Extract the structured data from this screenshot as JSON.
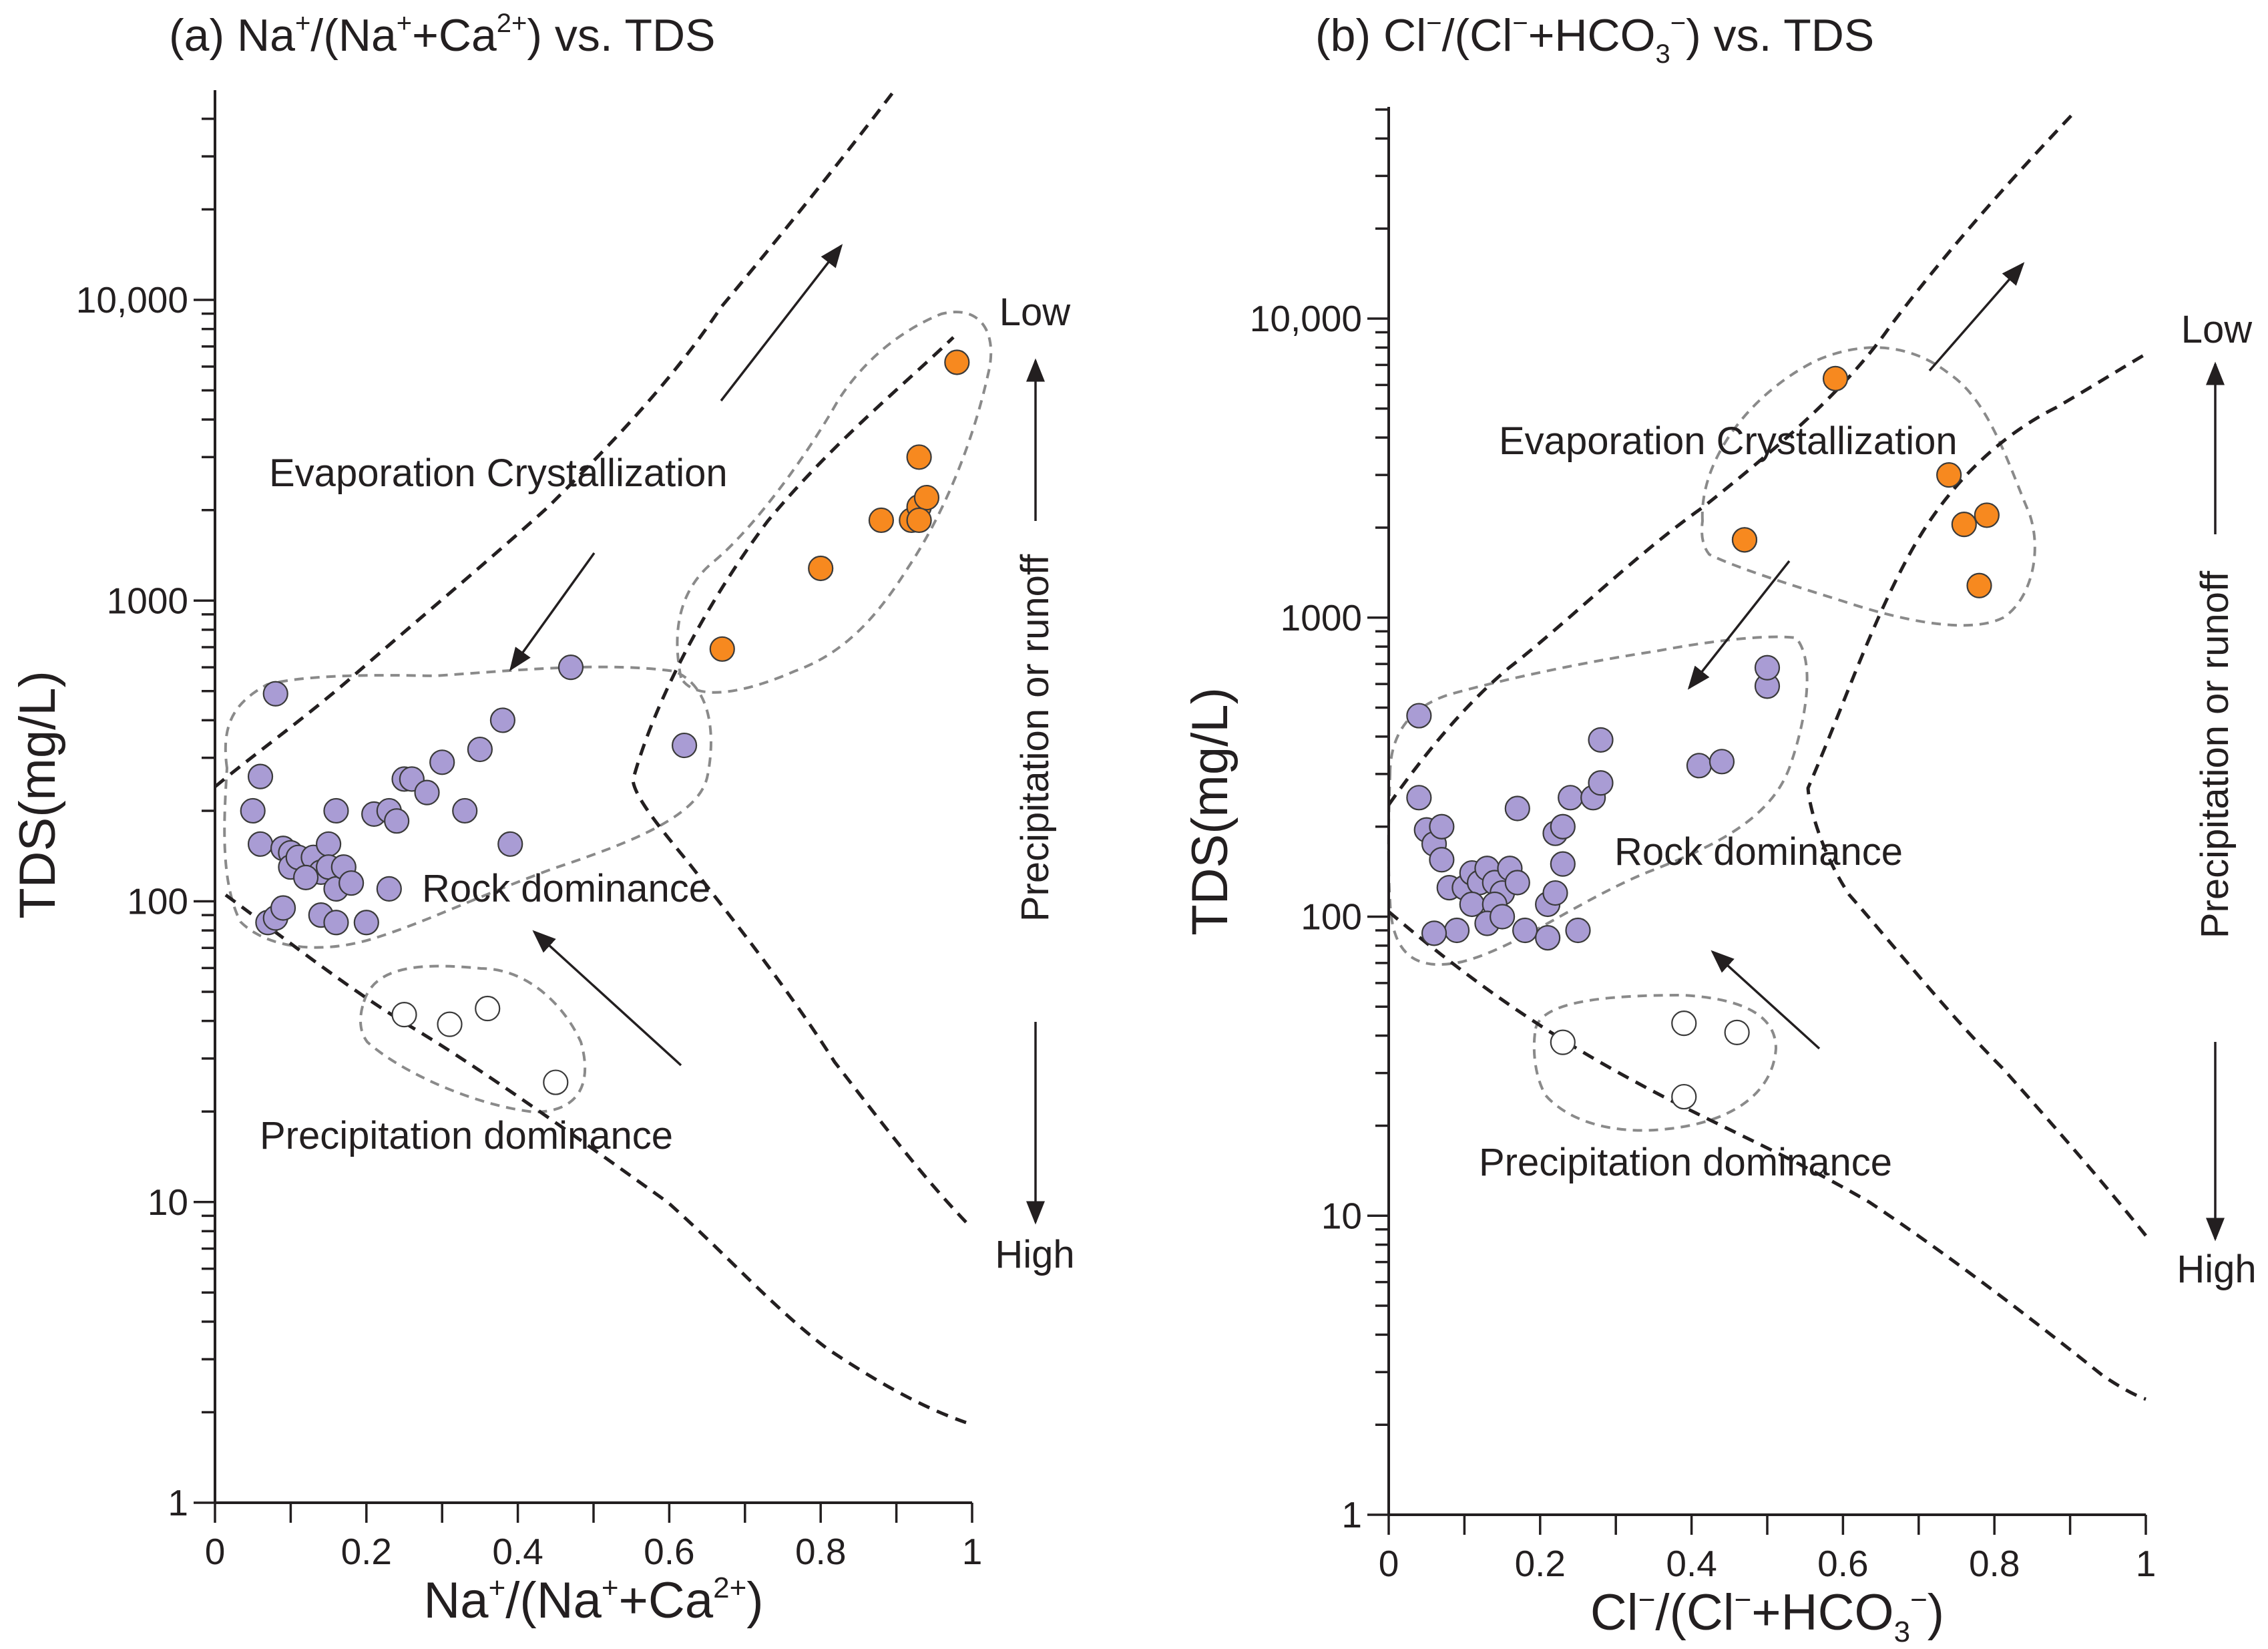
{
  "chart_data": [
    {
      "type": "scatter",
      "title": "(a) Na⁺/(Na⁺+Ca²⁺) vs. TDS",
      "title_parts": {
        "prefix": "(a) Na",
        "s1": "+",
        "t1": "/(Na",
        "s2": "+",
        "t2": "+Ca",
        "s3": "2+",
        "t3": ") vs. TDS"
      },
      "xlabel": "Na⁺/(Na⁺+Ca²⁺)",
      "xlabel_parts": {
        "a": "Na",
        "s1": "+",
        "b": "/(Na",
        "s2": "+",
        "c": "+Ca",
        "s3": "2+",
        "d": ")"
      },
      "ylabel": "TDS(mg/L)",
      "xlim": [
        0,
        1
      ],
      "ylim": [
        1,
        50000
      ],
      "y_scale": "log",
      "x_ticks": [
        "0",
        "0.2",
        "0.4",
        "0.6",
        "0.8",
        "1"
      ],
      "y_ticks": [
        {
          "value": 1,
          "label": "1"
        },
        {
          "value": 10,
          "label": "10"
        },
        {
          "value": 100,
          "label": "100"
        },
        {
          "value": 1000,
          "label": "1000"
        },
        {
          "value": 10000,
          "label": "10,000"
        }
      ],
      "region_labels": {
        "evaporation": "Evaporation  Crystallization",
        "rock": "Rock dominance",
        "precipitation": "Precipitation dominance"
      },
      "side_labels": {
        "low": "Low",
        "high": "High",
        "middle": "Precipitation or runoff"
      },
      "series": [
        {
          "name": "purple",
          "color": "#a99cd4",
          "points": [
            [
              0.08,
              490
            ],
            [
              0.06,
              260
            ],
            [
              0.05,
              200
            ],
            [
              0.06,
              155
            ],
            [
              0.09,
              150
            ],
            [
              0.1,
              145
            ],
            [
              0.1,
              130
            ],
            [
              0.11,
              140
            ],
            [
              0.13,
              140
            ],
            [
              0.14,
              125
            ],
            [
              0.12,
              120
            ],
            [
              0.15,
              155
            ],
            [
              0.15,
              130
            ],
            [
              0.16,
              110
            ],
            [
              0.17,
              130
            ],
            [
              0.18,
              115
            ],
            [
              0.16,
              200
            ],
            [
              0.21,
              195
            ],
            [
              0.23,
              200
            ],
            [
              0.24,
              185
            ],
            [
              0.25,
              255
            ],
            [
              0.26,
              255
            ],
            [
              0.28,
              230
            ],
            [
              0.3,
              290
            ],
            [
              0.33,
              200
            ],
            [
              0.35,
              320
            ],
            [
              0.38,
              400
            ],
            [
              0.39,
              155
            ],
            [
              0.47,
              600
            ],
            [
              0.62,
              330
            ],
            [
              0.07,
              85
            ],
            [
              0.08,
              88
            ],
            [
              0.09,
              95
            ],
            [
              0.14,
              90
            ],
            [
              0.16,
              85
            ],
            [
              0.2,
              85
            ],
            [
              0.23,
              110
            ]
          ]
        },
        {
          "name": "orange",
          "color": "#f7891f",
          "points": [
            [
              0.67,
              690
            ],
            [
              0.8,
              1280
            ],
            [
              0.88,
              1850
            ],
            [
              0.92,
              1850
            ],
            [
              0.93,
              2050
            ],
            [
              0.94,
              2200
            ],
            [
              0.93,
              1850
            ],
            [
              0.93,
              3000
            ],
            [
              0.98,
              6200
            ]
          ]
        },
        {
          "name": "open",
          "color": "#ffffff",
          "points": [
            [
              0.25,
              42
            ],
            [
              0.31,
              39
            ],
            [
              0.36,
              44
            ],
            [
              0.45,
              25
            ]
          ]
        }
      ]
    },
    {
      "type": "scatter",
      "title": "(b) Cl⁻/(Cl⁻+HCO₃⁻) vs. TDS",
      "title_parts": {
        "prefix": "(b) Cl",
        "s1": "−",
        "t1": "/(Cl",
        "s2": "−",
        "t2": "+HCO",
        "sub": "3",
        "s3": "−",
        "t3": ") vs. TDS"
      },
      "xlabel": "Cl⁻/(Cl⁻+HCO₃⁻)",
      "xlabel_parts": {
        "a": "Cl",
        "s1": "−",
        "b": "/(Cl",
        "s2": "−",
        "c": "+HCO",
        "sub": "3",
        "s3": "−",
        "d": ")"
      },
      "ylabel": "TDS(mg/L)",
      "xlim": [
        0,
        1
      ],
      "ylim": [
        1,
        50000
      ],
      "y_scale": "log",
      "x_ticks": [
        "0",
        "0.2",
        "0.4",
        "0.6",
        "0.8",
        "1"
      ],
      "y_ticks": [
        {
          "value": 1,
          "label": "1"
        },
        {
          "value": 10,
          "label": "10"
        },
        {
          "value": 100,
          "label": "100"
        },
        {
          "value": 1000,
          "label": "1000"
        },
        {
          "value": 10000,
          "label": "10,000"
        }
      ],
      "region_labels": {
        "evaporation": "Evaporation  Crystallization",
        "rock": "Rock dominance",
        "precipitation": "Precipitation dominance"
      },
      "side_labels": {
        "low": "Low",
        "high": "High",
        "middle": "Precipitation or runoff"
      },
      "series": [
        {
          "name": "purple",
          "color": "#a99cd4",
          "points": [
            [
              0.04,
              470
            ],
            [
              0.04,
              250
            ],
            [
              0.05,
              195
            ],
            [
              0.06,
              175
            ],
            [
              0.07,
              200
            ],
            [
              0.07,
              155
            ],
            [
              0.08,
              125
            ],
            [
              0.1,
              125
            ],
            [
              0.11,
              140
            ],
            [
              0.12,
              130
            ],
            [
              0.13,
              145
            ],
            [
              0.14,
              130
            ],
            [
              0.15,
              120
            ],
            [
              0.16,
              145
            ],
            [
              0.17,
              130
            ],
            [
              0.17,
              230
            ],
            [
              0.11,
              110
            ],
            [
              0.14,
              110
            ],
            [
              0.13,
              95
            ],
            [
              0.15,
              100
            ],
            [
              0.18,
              90
            ],
            [
              0.09,
              90
            ],
            [
              0.06,
              88
            ],
            [
              0.21,
              85
            ],
            [
              0.21,
              110
            ],
            [
              0.22,
              120
            ],
            [
              0.22,
              190
            ],
            [
              0.23,
              200
            ],
            [
              0.23,
              150
            ],
            [
              0.24,
              250
            ],
            [
              0.25,
              90
            ],
            [
              0.27,
              250
            ],
            [
              0.28,
              280
            ],
            [
              0.28,
              390
            ],
            [
              0.41,
              320
            ],
            [
              0.44,
              330
            ],
            [
              0.5,
              590
            ],
            [
              0.5,
              680
            ]
          ]
        },
        {
          "name": "orange",
          "color": "#f7891f",
          "points": [
            [
              0.47,
              1820
            ],
            [
              0.47,
              1820
            ],
            [
              0.59,
              6300
            ],
            [
              0.74,
              3000
            ],
            [
              0.76,
              2050
            ],
            [
              0.79,
              2200
            ],
            [
              0.78,
              1280
            ]
          ]
        },
        {
          "name": "open",
          "color": "#ffffff",
          "points": [
            [
              0.23,
              38
            ],
            [
              0.39,
              44
            ],
            [
              0.46,
              41
            ],
            [
              0.39,
              25
            ]
          ]
        }
      ]
    }
  ]
}
